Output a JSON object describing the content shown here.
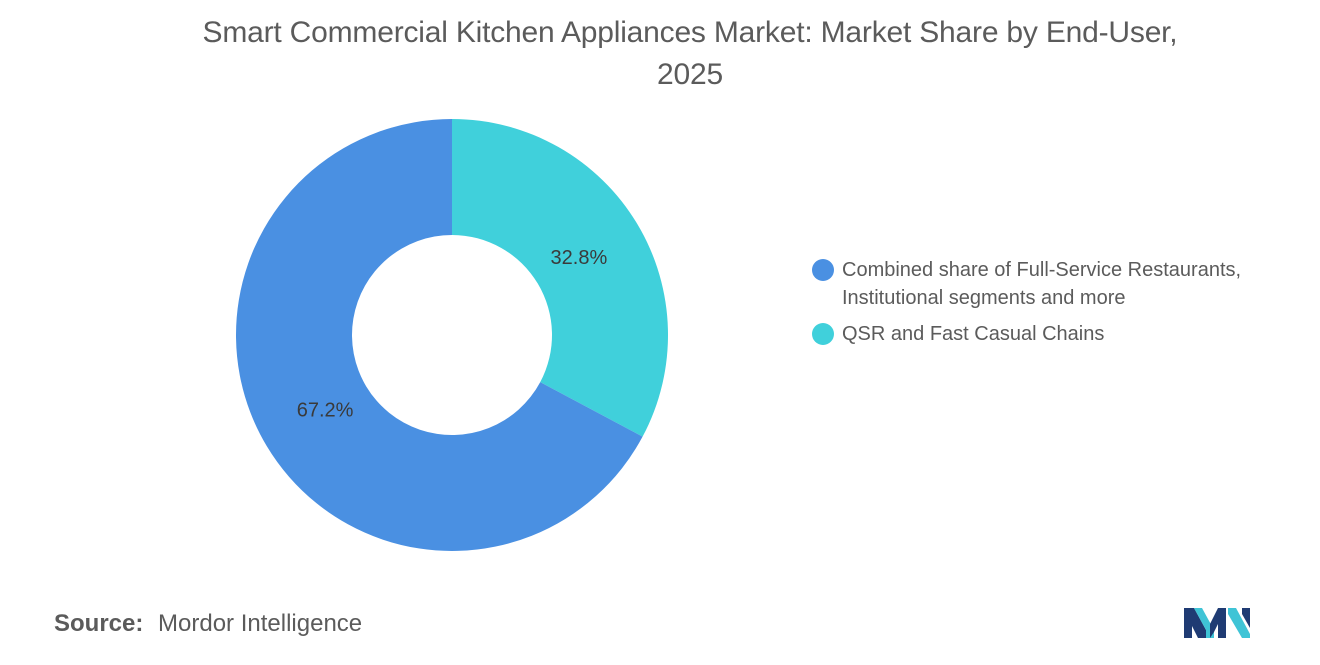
{
  "title_line1": "Smart Commercial Kitchen Appliances Market: Market Share by End-User,",
  "title_line2": "2025",
  "source_label": "Source:",
  "source_value": "Mordor Intelligence",
  "chart_data": {
    "type": "pie",
    "donut": true,
    "title": "Smart Commercial Kitchen Appliances Market: Market Share by End-User, 2025",
    "legend_position": "right",
    "slices": [
      {
        "label": "QSR and Fast Casual Chains",
        "value": 32.8,
        "display": "32.8%",
        "color": "#40D0DB"
      },
      {
        "label": "Combined share of Full-Service Restaurants, Institutional segments and more",
        "value": 67.2,
        "display": "67.2%",
        "color": "#4A90E2"
      }
    ],
    "legend": [
      {
        "label": "Combined share of Full-Service Restaurants, Institutional segments and more",
        "color": "#4A90E2"
      },
      {
        "label": "QSR and Fast Casual Chains",
        "color": "#40D0DB"
      }
    ]
  },
  "logo": {
    "icon": "mordor-intelligence-logo",
    "colors": [
      "#1F3B73",
      "#3FC4D6"
    ]
  }
}
